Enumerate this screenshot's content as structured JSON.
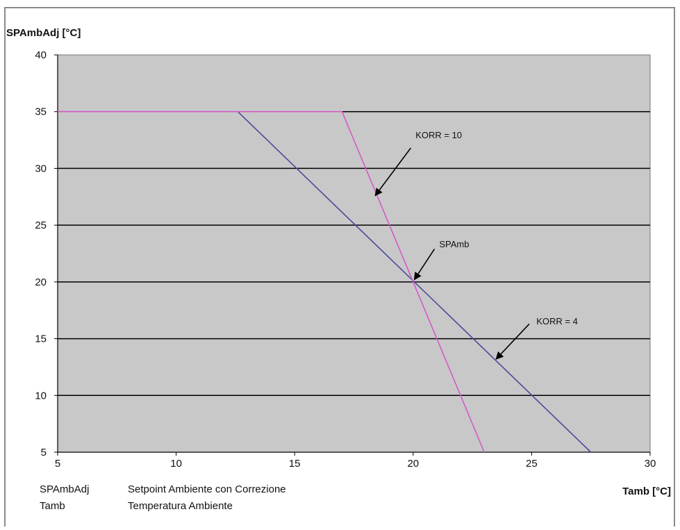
{
  "chart_data": {
    "type": "line",
    "ylabel": "SPAmbAdj [°C]",
    "xlabel": "Tamb [°C]",
    "xlim": [
      5,
      30
    ],
    "ylim": [
      5,
      40
    ],
    "xticks": [
      5,
      10,
      15,
      20,
      25,
      30
    ],
    "yticks": [
      5,
      10,
      15,
      20,
      25,
      30,
      35,
      40
    ],
    "grid": "horizontal",
    "colors": {
      "plot_bg": "#c8c8c8",
      "korr4": "#4b4a9c",
      "korr10": "#d25cc8",
      "grid": "#000000"
    },
    "series": [
      {
        "name": "KORR = 4",
        "points": [
          [
            5,
            35
          ],
          [
            12.6,
            35
          ],
          [
            27.5,
            5
          ]
        ]
      },
      {
        "name": "KORR = 10",
        "points": [
          [
            5,
            35
          ],
          [
            17,
            35
          ],
          [
            23,
            5
          ]
        ]
      }
    ],
    "annotations": [
      {
        "label": "KORR = 10",
        "text_at": [
          20.1,
          32.9
        ],
        "arrow_from": [
          19.9,
          31.8
        ],
        "arrow_to": [
          18.4,
          27.6
        ]
      },
      {
        "label": "SPAmb",
        "text_at": [
          21.1,
          23.3
        ],
        "arrow_from": [
          20.9,
          22.9
        ],
        "arrow_to": [
          20.05,
          20.2
        ]
      },
      {
        "label": "KORR = 4",
        "text_at": [
          25.2,
          16.5
        ],
        "arrow_from": [
          24.9,
          16.3
        ],
        "arrow_to": [
          23.5,
          13.2
        ]
      }
    ],
    "legend": [
      {
        "abbr": "SPAmbAdj",
        "desc": "Setpoint Ambiente con Correzione"
      },
      {
        "abbr": "Tamb",
        "desc": "Temperatura Ambiente"
      }
    ]
  }
}
